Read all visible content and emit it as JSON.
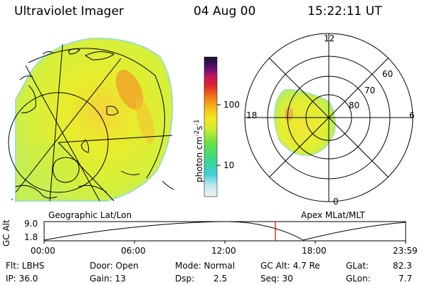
{
  "header": {
    "instrument": "Ultraviolet Imager",
    "date": "04 Aug 00",
    "time": "15:22:11 UT"
  },
  "colorbar": {
    "label": "photon cm",
    "label_sup1": "-2",
    "label_mid": "s",
    "label_sup2": "-1",
    "ticks": [
      "100",
      "10"
    ]
  },
  "polar": {
    "mlt_labels": [
      "12",
      "18",
      "6",
      "0"
    ],
    "lat_labels": [
      "60",
      "70",
      "80"
    ]
  },
  "panel_titles": {
    "left": "Geographic Lat/Lon",
    "right": "Apex MLat/MLT"
  },
  "altitude": {
    "axis_label": "GC Alt",
    "ytick_top": "9.0",
    "ytick_bottom": "1.8",
    "xticks": [
      "00:00",
      "06:00",
      "12:00",
      "18:00",
      "23:59"
    ],
    "marker_color": "#e00000"
  },
  "info": {
    "flt": "Flt: LBHS",
    "ip": "IP: 36.0",
    "door": "Door: Open",
    "gain": "Gain: 13",
    "mode": "Mode: Normal",
    "dsp_label": "Dsp:",
    "dsp_value": "2.5",
    "gcalt": "GC Alt: 4.7 Re",
    "seq": "Seq: 30",
    "glat_label": "GLat:",
    "glat_value": "82.3",
    "glon_label": "GLon:",
    "glon_value": "7.7"
  }
}
